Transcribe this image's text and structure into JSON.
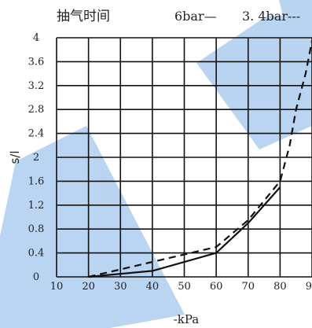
{
  "chart_data": {
    "type": "line",
    "title": "抽气时间",
    "xlabel": "-kPa",
    "ylabel": "s/l",
    "xlim": [
      10,
      90
    ],
    "ylim": [
      0,
      4
    ],
    "x_ticks": [
      "10",
      "20",
      "30",
      "40",
      "50",
      "60",
      "70",
      "80",
      "90"
    ],
    "y_ticks": [
      "0",
      "0.4",
      "0.8",
      "1.2",
      "1.6",
      "2",
      "2.4",
      "2.8",
      "3.2",
      "3.6",
      "4"
    ],
    "grid": true,
    "legend_position": "top-right",
    "series": [
      {
        "name": "6bar",
        "legend_label": "6bar—",
        "style": "solid",
        "x": [
          20,
          40,
          60,
          70,
          80
        ],
        "y": [
          0,
          0.1,
          0.4,
          0.9,
          1.5
        ]
      },
      {
        "name": "3.4bar",
        "legend_label": "3. 4bar---",
        "style": "dashed",
        "x": [
          20,
          40,
          60,
          70,
          80,
          83,
          85,
          88,
          90
        ],
        "y": [
          0,
          0.25,
          0.5,
          0.95,
          1.6,
          2.2,
          2.8,
          3.4,
          3.95
        ]
      }
    ],
    "watermark_color": "#4a90d9",
    "line_color": "#111111",
    "grid_color": "#111111"
  }
}
